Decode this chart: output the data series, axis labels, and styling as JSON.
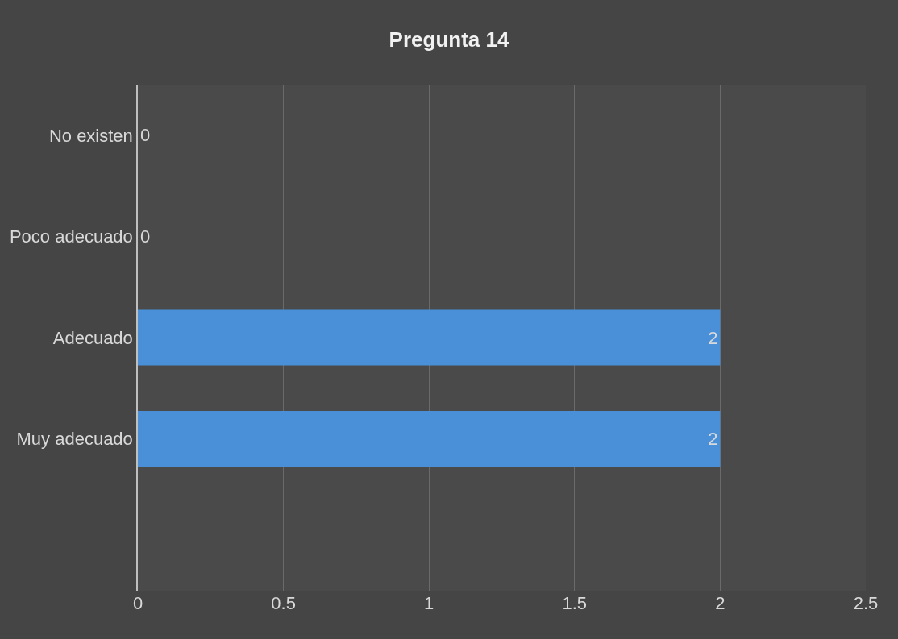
{
  "chart_data": {
    "type": "bar",
    "orientation": "horizontal",
    "title": "Pregunta 14",
    "categories": [
      "No existen",
      "Poco adecuado",
      "Adecuado",
      "Muy adecuado",
      null
    ],
    "values": [
      0,
      0,
      2,
      2,
      null
    ],
    "color": "#4a90d9",
    "xlim": [
      0,
      2.5
    ],
    "xticks": [
      0,
      0.5,
      1,
      1.5,
      2,
      2.5
    ],
    "grid": "x",
    "data_labels": true
  }
}
